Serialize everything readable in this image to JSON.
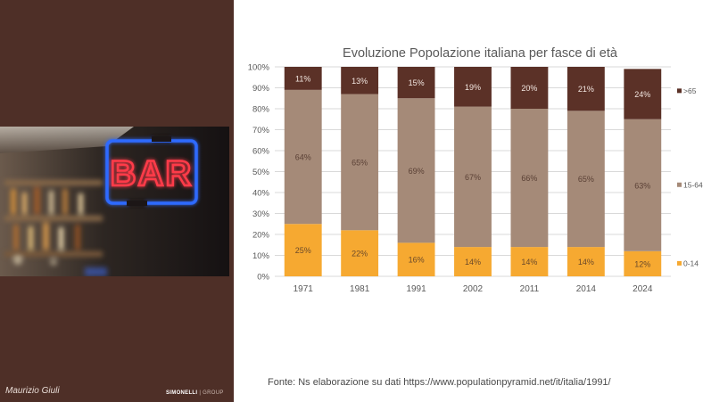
{
  "footer": {
    "author": "Maurizio Giuli",
    "brand_main": "SIMONELLI",
    "brand_sub": "| GROUP"
  },
  "photo": {
    "neon_text": "BAR",
    "neon_color": "#ff3b48",
    "frame_color": "#2f6bff"
  },
  "source_text": "Fonte: Ns elaborazione su dati https://www.populationpyramid.net/it/italia/1991/",
  "colors": {
    "panel": "#4e2f27",
    "over65": "#5b3127",
    "age15_64": "#a58a78",
    "age0_14": "#f6a931"
  },
  "chart_data": {
    "type": "bar",
    "stacked": true,
    "title": "Evoluzione Popolazione italiana per fasce di età",
    "categories": [
      "1971",
      "1981",
      "1991",
      "2002",
      "2011",
      "2014",
      "2024"
    ],
    "series": [
      {
        "name": "0-14",
        "values": [
          25,
          22,
          16,
          14,
          14,
          14,
          12
        ],
        "labels": [
          "25%",
          "22%",
          "16%",
          "14%",
          "14%",
          "14%",
          "12%"
        ],
        "color": "#f6a931",
        "label_color": "#6b4a2a"
      },
      {
        "name": "15-64",
        "values": [
          64,
          65,
          69,
          67,
          66,
          65,
          63
        ],
        "labels": [
          "64%",
          "65%",
          "69%",
          "67%",
          "66%",
          "65%",
          "63%"
        ],
        "color": "#a58a78",
        "label_color": "#5a4035"
      },
      {
        "name": ">65",
        "values": [
          11,
          13,
          15,
          19,
          20,
          21,
          24
        ],
        "labels": [
          "11%",
          "13%",
          "15%",
          "19%",
          "20%",
          "21%",
          "24%"
        ],
        "color": "#5b3127",
        "label_color": "#f2e6e0"
      }
    ],
    "y_ticks": [
      "0%",
      "10%",
      "20%",
      "30%",
      "40%",
      "50%",
      "60%",
      "70%",
      "80%",
      "90%",
      "100%"
    ],
    "ylim": [
      0,
      100
    ],
    "grid": true,
    "legend_position": "right"
  }
}
